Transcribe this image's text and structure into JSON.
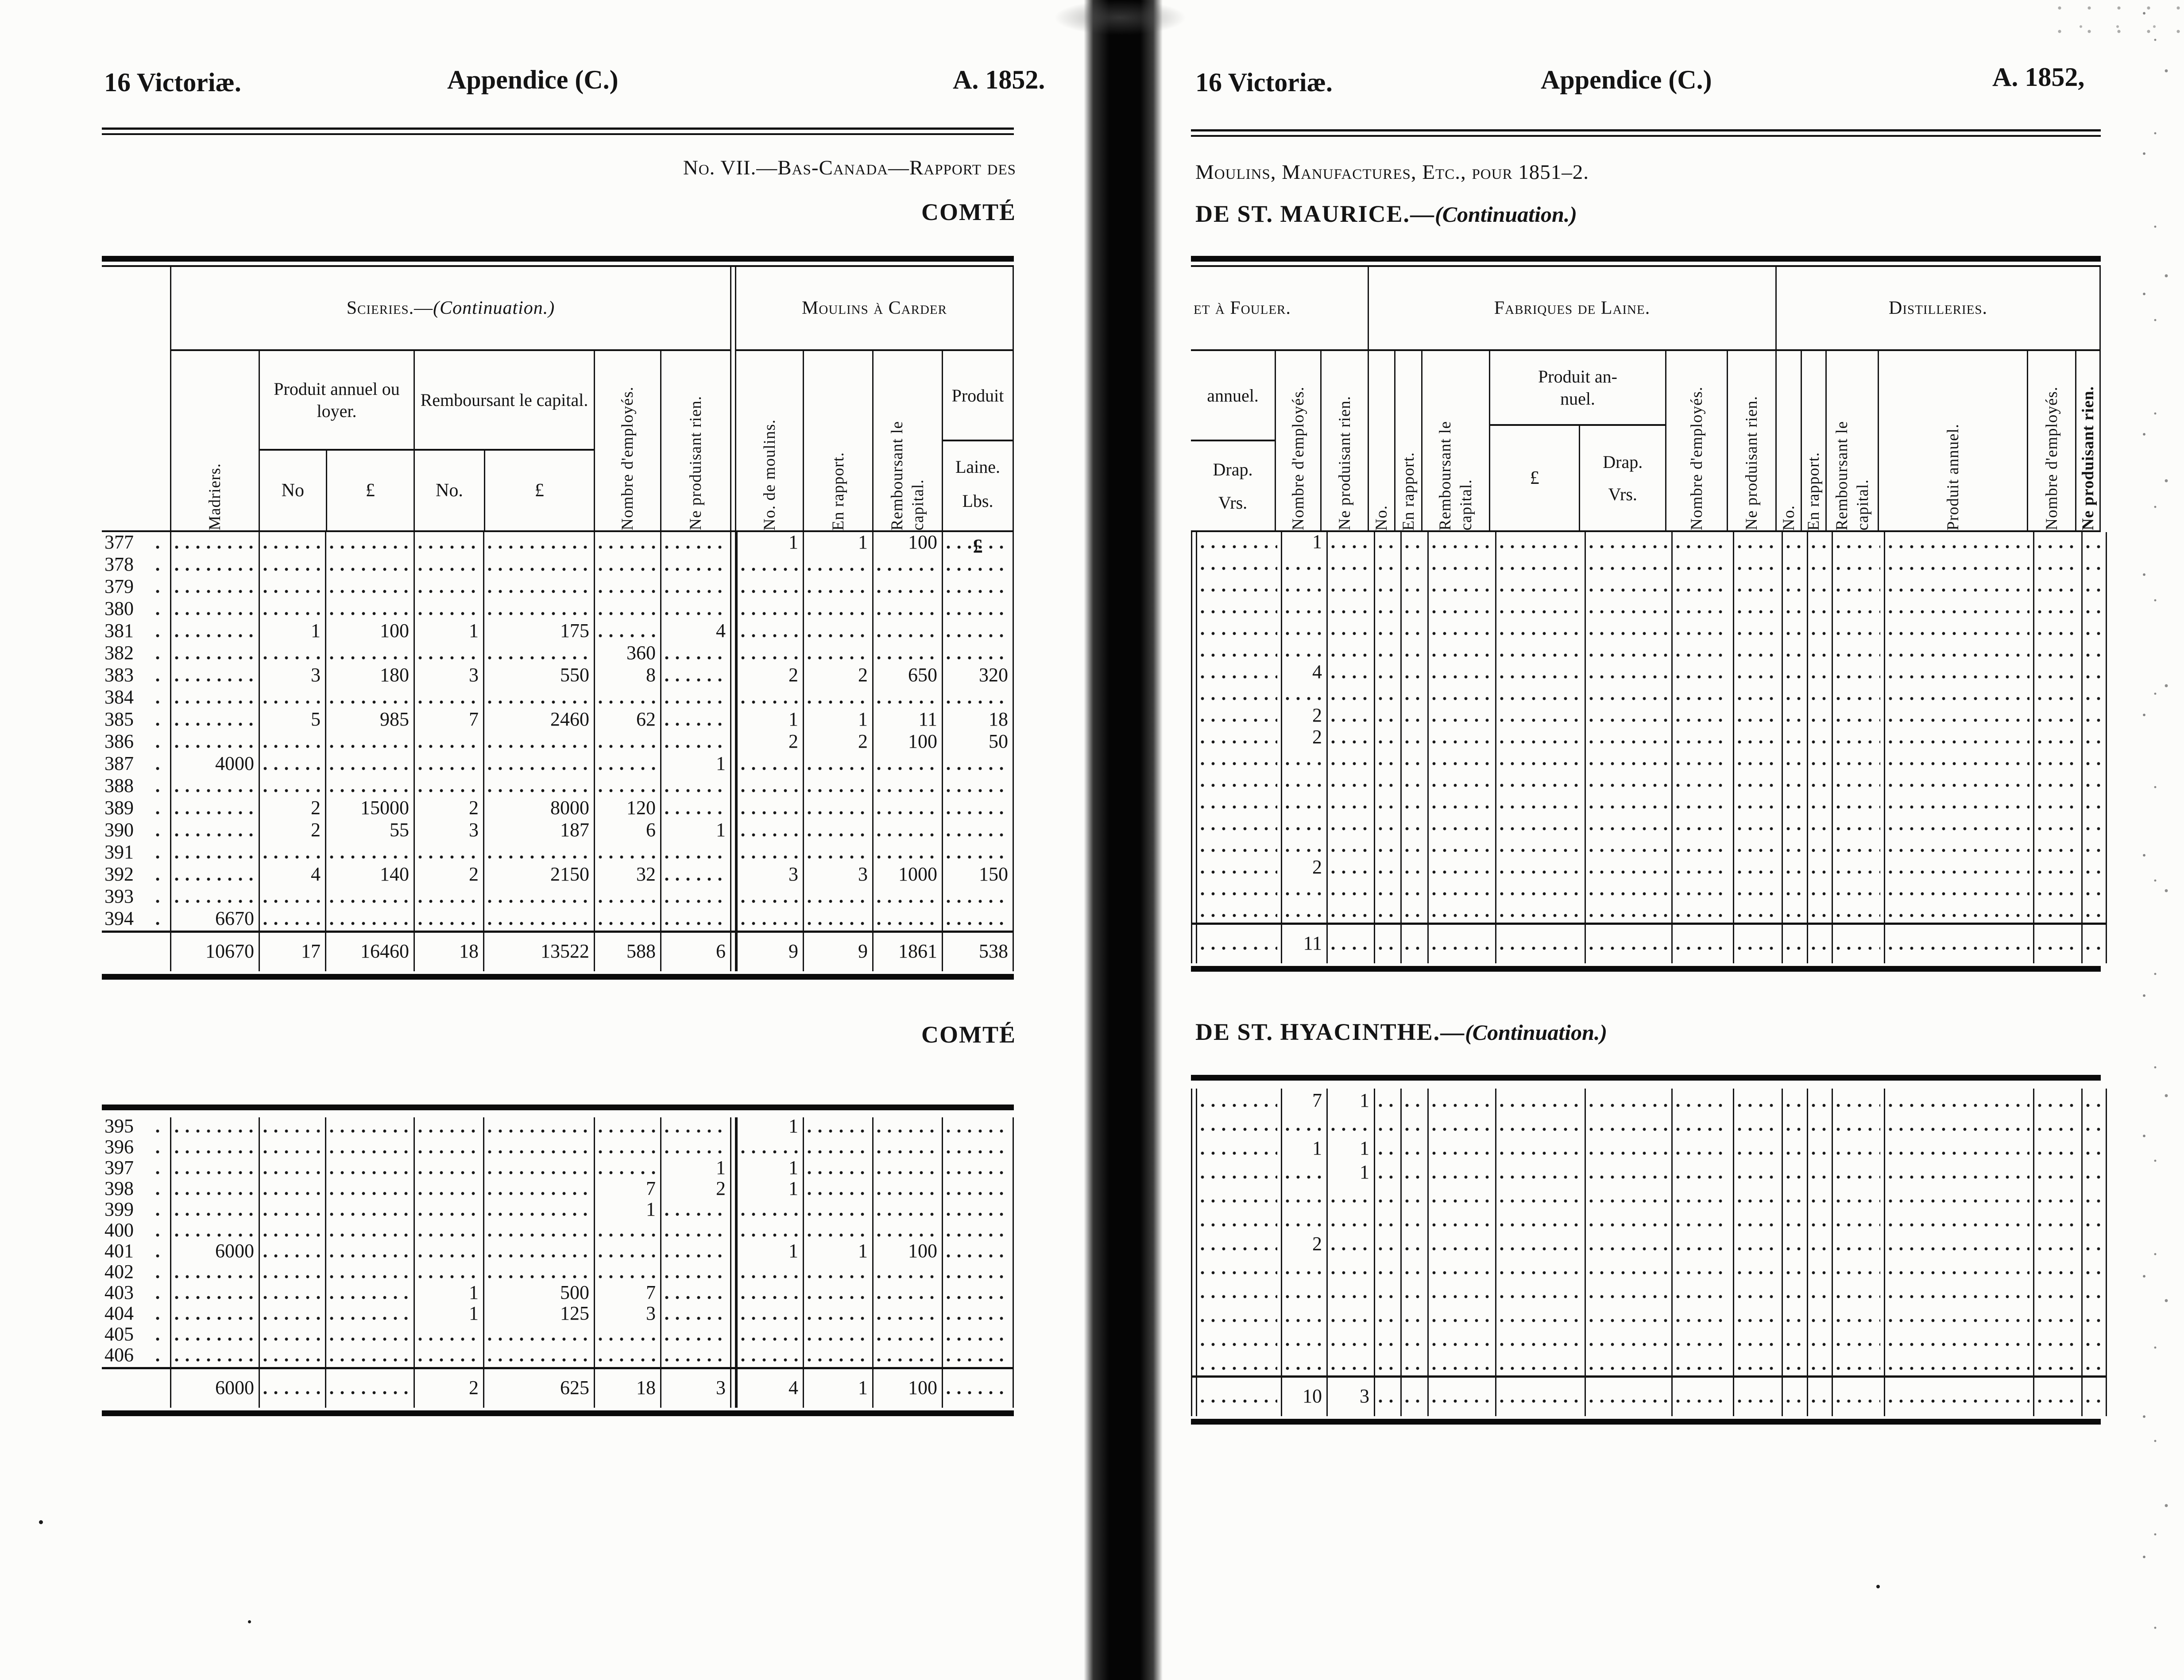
{
  "page_left": {
    "header": {
      "victoria": "16 Victoriæ.",
      "appendice": "Appendice (C.)",
      "annee": "A. 1852."
    },
    "subtitle1": "No. VII.—Bas-Canada—Rapport des",
    "comte": "COMTÉ",
    "comte2": "COMTÉ",
    "table1": {
      "groups": {
        "scieries_main": "Scieries.—",
        "scieries_cont": "(Continuation.)",
        "carder": "Moulins à Carder"
      },
      "cols": {
        "madriers": "Madriers.",
        "produit_annuel": "Produit annuel ou loyer.",
        "pa_no": "No",
        "pound": "£",
        "remb_title": "Remboursant le capital.",
        "rb_no": "No.",
        "employes": "Nombre d'employés.",
        "rien": "Ne produisant rien.",
        "no_moulins": "No. de moulins.",
        "rapport": "En rapport.",
        "remb_l1": "Remboursant le",
        "remb_l2": "capital.",
        "produit": "Produit",
        "laine": "Laine.",
        "lbs": "Lbs.",
        "pound_mark": "£"
      },
      "rows": [
        [
          "377",
          "",
          "",
          "",
          "",
          "",
          "",
          "",
          "1",
          "1",
          "100",
          ""
        ],
        [
          "378",
          "",
          "",
          "",
          "",
          "",
          "",
          "",
          "",
          "",
          "",
          ""
        ],
        [
          "379",
          "",
          "",
          "",
          "",
          "",
          "",
          "",
          "",
          "",
          "",
          ""
        ],
        [
          "380",
          "",
          "",
          "",
          "",
          "",
          "",
          "",
          "",
          "",
          "",
          ""
        ],
        [
          "381",
          "",
          "1",
          "100",
          "1",
          "175",
          "",
          "4",
          "",
          "",
          "",
          ""
        ],
        [
          "382",
          "",
          "",
          "",
          "",
          "",
          "360",
          "",
          "",
          "",
          "",
          ""
        ],
        [
          "383",
          "",
          "3",
          "180",
          "3",
          "550",
          "8",
          "",
          "2",
          "2",
          "650",
          "320"
        ],
        [
          "384",
          "",
          "",
          "",
          "",
          "",
          "",
          "",
          "",
          "",
          "",
          ""
        ],
        [
          "385",
          "",
          "5",
          "985",
          "7",
          "2460",
          "62",
          "",
          "1",
          "1",
          "11",
          "18"
        ],
        [
          "386",
          "",
          "",
          "",
          "",
          "",
          "",
          "",
          "2",
          "2",
          "100",
          "50"
        ],
        [
          "387",
          "4000",
          "",
          "",
          "",
          "",
          "",
          "1",
          "",
          "",
          "",
          ""
        ],
        [
          "388",
          "",
          "",
          "",
          "",
          "",
          "",
          "",
          "",
          "",
          "",
          ""
        ],
        [
          "389",
          "",
          "2",
          "15000",
          "2",
          "8000",
          "120",
          "",
          "",
          "",
          "",
          ""
        ],
        [
          "390",
          "",
          "2",
          "55",
          "3",
          "187",
          "6",
          "1",
          "",
          "",
          "",
          ""
        ],
        [
          "391",
          "",
          "",
          "",
          "",
          "",
          "",
          "",
          "",
          "",
          "",
          ""
        ],
        [
          "392",
          "",
          "4",
          "140",
          "2",
          "2150",
          "32",
          "",
          "3",
          "3",
          "1000",
          "150"
        ],
        [
          "393",
          "",
          "",
          "",
          "",
          "",
          "",
          "",
          "",
          "",
          "",
          ""
        ],
        [
          "394",
          "6670",
          "",
          "",
          "",
          "",
          "",
          "",
          "",
          "",
          "",
          ""
        ]
      ],
      "totals": [
        [
          null,
          "10670",
          "17",
          "16460",
          "18",
          "13522",
          "588",
          "6",
          "9",
          "9",
          "1861",
          "538"
        ]
      ]
    },
    "table2": {
      "rows": [
        [
          "395",
          "",
          "",
          "",
          "",
          "",
          "",
          "",
          "1",
          "",
          "",
          ""
        ],
        [
          "396",
          "",
          "",
          "",
          "",
          "",
          "",
          "",
          "",
          "",
          "",
          ""
        ],
        [
          "397",
          "",
          "",
          "",
          "",
          "",
          "",
          "1",
          "1",
          "",
          "",
          ""
        ],
        [
          "398",
          "",
          "",
          "",
          "",
          "",
          "7",
          "2",
          "1",
          "",
          "",
          ""
        ],
        [
          "399",
          "",
          "",
          "",
          "",
          "",
          "1",
          "",
          "",
          "",
          "",
          ""
        ],
        [
          "400",
          "",
          "",
          "",
          "",
          "",
          "",
          "",
          "",
          "",
          "",
          ""
        ],
        [
          "401",
          "6000",
          "",
          "",
          "",
          "",
          "",
          "",
          "1",
          "1",
          "100",
          ""
        ],
        [
          "402",
          "",
          "",
          "",
          "",
          "",
          "",
          "",
          "",
          "",
          "",
          ""
        ],
        [
          "403",
          "",
          "",
          "",
          "1",
          "500",
          "7",
          "",
          "",
          "",
          "",
          ""
        ],
        [
          "404",
          "",
          "",
          "",
          "1",
          "125",
          "3",
          "",
          "",
          "",
          "",
          ""
        ],
        [
          "405",
          "",
          "",
          "",
          "",
          "",
          "",
          "",
          "",
          "",
          "",
          ""
        ],
        [
          "406",
          "",
          "",
          "",
          "",
          "",
          "",
          "",
          "",
          "",
          "",
          ""
        ]
      ],
      "totals": [
        [
          null,
          "6000",
          "",
          "",
          "2",
          "625",
          "18",
          "3",
          "4",
          "1",
          "100",
          ""
        ]
      ]
    }
  },
  "page_right": {
    "header": {
      "victoria": "16 Victoriæ.",
      "appendice": "Appendice (C.)",
      "annee": "A. 1852,"
    },
    "subtitle1": "Moulins, Manufactures, Etc., pour 1851–2.",
    "maurice_main": "DE ST. MAURICE.—",
    "maurice_cont": "(Continuation.)",
    "hyacinthe_main": "DE ST. HYACINTHE.—",
    "hyacinthe_cont": "(Continuation.)",
    "table": {
      "groups": {
        "fouler": "et à Fouler.",
        "laine": "Fabriques de Laine.",
        "dist": "Distilleries."
      },
      "cols": {
        "annuel": "annuel.",
        "drap": "Drap.",
        "vrs": "Vrs.",
        "employes": "Nombre d'employés.",
        "rien": "Ne produisant rien.",
        "no": "No.",
        "rapport": "En rapport.",
        "remb_l1": "Remboursant le",
        "remb_l2": "capital.",
        "pan_l1": "Produit an-",
        "pan_l2": "nuel.",
        "pound": "£",
        "produit_annuel": "Produit annuel."
      },
      "maurice_rows": [
        [
          "",
          "1",
          "",
          "",
          "",
          "",
          "",
          "",
          "",
          "",
          "",
          "",
          "",
          "",
          "",
          ""
        ],
        [
          "",
          "",
          "",
          "",
          "",
          "",
          "",
          "",
          "",
          "",
          "",
          "",
          "",
          "",
          "",
          ""
        ],
        [
          "",
          "",
          "",
          "",
          "",
          "",
          "",
          "",
          "",
          "",
          "",
          "",
          "",
          "",
          "",
          ""
        ],
        [
          "",
          "",
          "",
          "",
          "",
          "",
          "",
          "",
          "",
          "",
          "",
          "",
          "",
          "",
          "",
          ""
        ],
        [
          "",
          "",
          "",
          "",
          "",
          "",
          "",
          "",
          "",
          "",
          "",
          "",
          "",
          "",
          "",
          ""
        ],
        [
          "",
          "",
          "",
          "",
          "",
          "",
          "",
          "",
          "",
          "",
          "",
          "",
          "",
          "",
          "",
          ""
        ],
        [
          "",
          "4",
          "",
          "",
          "",
          "",
          "",
          "",
          "",
          "",
          "",
          "",
          "",
          "",
          "",
          ""
        ],
        [
          "",
          "",
          "",
          "",
          "",
          "",
          "",
          "",
          "",
          "",
          "",
          "",
          "",
          "",
          "",
          ""
        ],
        [
          "",
          "2",
          "",
          "",
          "",
          "",
          "",
          "",
          "",
          "",
          "",
          "",
          "",
          "",
          "",
          ""
        ],
        [
          "",
          "2",
          "",
          "",
          "",
          "",
          "",
          "",
          "",
          "",
          "",
          "",
          "",
          "",
          "",
          ""
        ],
        [
          "",
          "",
          "",
          "",
          "",
          "",
          "",
          "",
          "",
          "",
          "",
          "",
          "",
          "",
          "",
          ""
        ],
        [
          "",
          "",
          "",
          "",
          "",
          "",
          "",
          "",
          "",
          "",
          "",
          "",
          "",
          "",
          "",
          ""
        ],
        [
          "",
          "",
          "",
          "",
          "",
          "",
          "",
          "",
          "",
          "",
          "",
          "",
          "",
          "",
          "",
          ""
        ],
        [
          "",
          "",
          "",
          "",
          "",
          "",
          "",
          "",
          "",
          "",
          "",
          "",
          "",
          "",
          "",
          ""
        ],
        [
          "",
          "",
          "",
          "",
          "",
          "",
          "",
          "",
          "",
          "",
          "",
          "",
          "",
          "",
          "",
          ""
        ],
        [
          "",
          "2",
          "",
          "",
          "",
          "",
          "",
          "",
          "",
          "",
          "",
          "",
          "",
          "",
          "",
          ""
        ],
        [
          "",
          "",
          "",
          "",
          "",
          "",
          "",
          "",
          "",
          "",
          "",
          "",
          "",
          "",
          "",
          ""
        ],
        [
          "",
          "",
          "",
          "",
          "",
          "",
          "",
          "",
          "",
          "",
          "",
          "",
          "",
          "",
          "",
          ""
        ]
      ],
      "maurice_totals": [
        [
          "",
          "11",
          "",
          "",
          "",
          "",
          "",
          "",
          "",
          "",
          "",
          "",
          "",
          "",
          "",
          ""
        ]
      ],
      "hyacinthe_rows": [
        [
          "",
          "7",
          "1",
          "",
          "",
          "",
          "",
          "",
          "",
          "",
          "",
          "",
          "",
          "",
          "",
          ""
        ],
        [
          "",
          "",
          "",
          "",
          "",
          "",
          "",
          "",
          "",
          "",
          "",
          "",
          "",
          "",
          "",
          ""
        ],
        [
          "",
          "1",
          "1",
          "",
          "",
          "",
          "",
          "",
          "",
          "",
          "",
          "",
          "",
          "",
          "",
          ""
        ],
        [
          "",
          "",
          "1",
          "",
          "",
          "",
          "",
          "",
          "",
          "",
          "",
          "",
          "",
          "",
          "",
          ""
        ],
        [
          "",
          "",
          "",
          "",
          "",
          "",
          "",
          "",
          "",
          "",
          "",
          "",
          "",
          "",
          "",
          ""
        ],
        [
          "",
          "",
          "",
          "",
          "",
          "",
          "",
          "",
          "",
          "",
          "",
          "",
          "",
          "",
          "",
          ""
        ],
        [
          "",
          "2",
          "",
          "",
          "",
          "",
          "",
          "",
          "",
          "",
          "",
          "",
          "",
          "",
          "",
          ""
        ],
        [
          "",
          "",
          "",
          "",
          "",
          "",
          "",
          "",
          "",
          "",
          "",
          "",
          "",
          "",
          "",
          ""
        ],
        [
          "",
          "",
          "",
          "",
          "",
          "",
          "",
          "",
          "",
          "",
          "",
          "",
          "",
          "",
          "",
          ""
        ],
        [
          "",
          "",
          "",
          "",
          "",
          "",
          "",
          "",
          "",
          "",
          "",
          "",
          "",
          "",
          "",
          ""
        ],
        [
          "",
          "",
          "",
          "",
          "",
          "",
          "",
          "",
          "",
          "",
          "",
          "",
          "",
          "",
          "",
          ""
        ],
        [
          "",
          "",
          "",
          "",
          "",
          "",
          "",
          "",
          "",
          "",
          "",
          "",
          "",
          "",
          "",
          ""
        ]
      ],
      "hyacinthe_totals": [
        [
          "",
          "10",
          "3",
          "",
          "",
          "",
          "",
          "",
          "",
          "",
          "",
          "",
          "",
          "",
          "",
          ""
        ]
      ]
    }
  }
}
